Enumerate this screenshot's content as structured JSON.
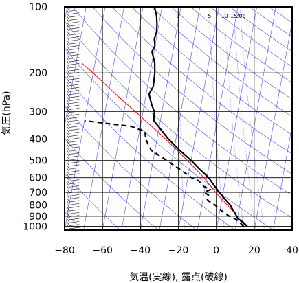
{
  "chart_data": {
    "type": "line",
    "subtype": "skew-T log-p sounding",
    "xlabel": "気温(実線), 露点(破線)",
    "ylabel": "気圧(hPa)",
    "xlim": [
      -80,
      40
    ],
    "ylim": [
      1040,
      100
    ],
    "y_scale": "log",
    "x_ticks": [
      -80,
      -60,
      -40,
      -20,
      0,
      20,
      40
    ],
    "y_ticks": [
      100,
      200,
      300,
      400,
      500,
      600,
      700,
      800,
      900,
      1000
    ],
    "grid": true,
    "mixing_ratio_labels": [
      "1",
      "5",
      "10",
      "15",
      "20g"
    ],
    "mixing_ratio_values": [
      1,
      5,
      10,
      15,
      20
    ],
    "isotherm_values": [
      -150,
      -140,
      -130,
      -120,
      -110,
      -100,
      -90,
      -80,
      -70,
      -60,
      -50,
      -40,
      -30,
      -20,
      -10,
      0,
      10,
      20,
      30,
      40
    ],
    "dry_adiabat_thetas": [
      200,
      220,
      240,
      260,
      280,
      300,
      320,
      340,
      360,
      380,
      400,
      420,
      440,
      460,
      480,
      500,
      520,
      540,
      560
    ],
    "parcel_path": {
      "p": [
        1000,
        950,
        900,
        850,
        800,
        700,
        600,
        500,
        400,
        300,
        250,
        200,
        180
      ],
      "T": [
        15.5,
        12.0,
        9.5,
        7.0,
        3.5,
        -4.0,
        -11.5,
        -22.0,
        -35.5,
        -54.0,
        -66.0,
        -80.0,
        -87.0
      ]
    },
    "series": [
      {
        "name": "",
        "style": "solid",
        "p": [
          1000,
          975,
          950,
          925,
          900,
          875,
          850,
          800,
          750,
          700,
          650,
          600,
          550,
          500,
          450,
          400,
          350,
          330,
          300,
          280,
          250,
          230,
          200,
          180,
          160,
          150,
          140,
          130,
          120,
          110,
          100
        ],
        "T": [
          16,
          14.5,
          12.8,
          10.5,
          9.3,
          8.5,
          7.2,
          5.0,
          1.5,
          -2.0,
          -5.5,
          -9.0,
          -14.5,
          -20.0,
          -27.0,
          -34.0,
          -40.5,
          -43.5,
          -44.0,
          -46.0,
          -48.5,
          -47.0,
          -47.5,
          -48.5,
          -51.0,
          -50.0,
          -51.0,
          -50.5,
          -51.0,
          -52.0,
          -54.0
        ]
      },
      {
        "name": "",
        "style": "dashed",
        "p": [
          1000,
          975,
          950,
          925,
          900,
          850,
          800,
          770,
          750,
          720,
          700,
          680,
          660,
          650,
          620,
          600,
          550,
          500,
          450,
          400,
          370,
          350,
          340,
          330
        ],
        "T": [
          14,
          12.5,
          11.0,
          9.0,
          5.5,
          1.0,
          -3.0,
          -6.5,
          -8.0,
          -7.5,
          -10.0,
          -7.0,
          -10.5,
          -11.5,
          -14.0,
          -18.0,
          -25.0,
          -33.0,
          -42.0,
          -46.0,
          -47.0,
          -55.0,
          -68.0,
          -80.0
        ]
      }
    ],
    "wind_barb_column": {
      "x": -73,
      "count": 75
    }
  }
}
